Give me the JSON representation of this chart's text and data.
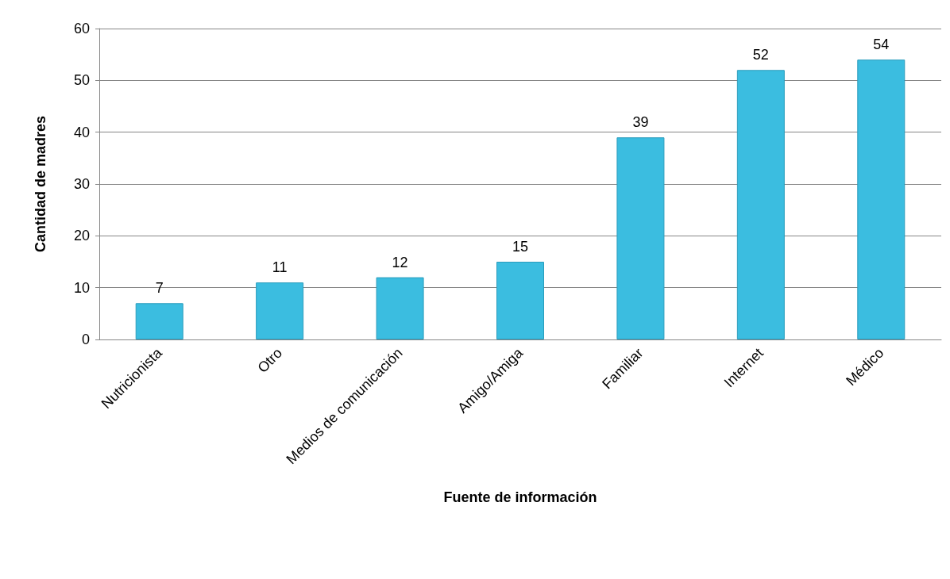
{
  "chart_data": {
    "type": "bar",
    "xlabel": "Fuente de información",
    "ylabel": "Cantidad de madres",
    "categories": [
      "Nutricionista",
      "Otro",
      "Medios de comunicación",
      "Amigo/Amiga",
      "Familiar",
      "Internet",
      "Médico"
    ],
    "values": [
      7,
      11,
      12,
      15,
      39,
      52,
      54
    ],
    "color": "#3bbde0",
    "ylim": [
      0,
      60
    ],
    "yticks": [
      0,
      10,
      20,
      30,
      40,
      50,
      60
    ],
    "grid": "y",
    "data_labels": true
  }
}
